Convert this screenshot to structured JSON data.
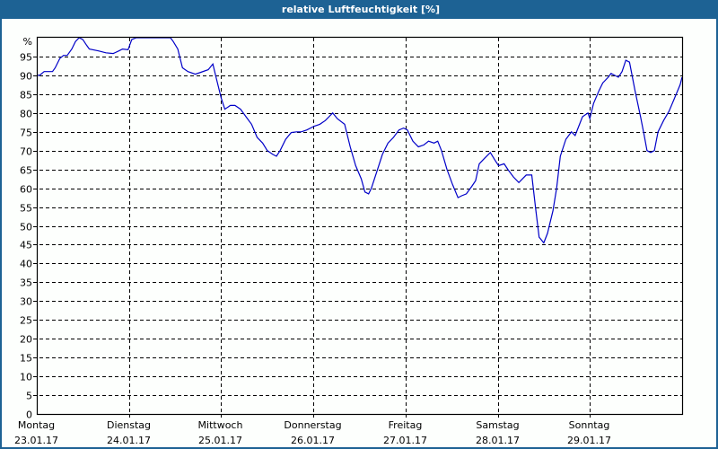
{
  "title": "relative Luftfeuchtigkeit [%]",
  "colors": {
    "frame": "#1d6294",
    "line": "#0000c8",
    "grid": "#000000",
    "background": "#fdfffd"
  },
  "chart_data": {
    "type": "line",
    "title": "relative Luftfeuchtigkeit [%]",
    "xlabel": "",
    "ylabel": "%",
    "ylim": [
      0,
      100
    ],
    "yticks": [
      0,
      5,
      10,
      15,
      20,
      25,
      30,
      35,
      40,
      45,
      50,
      55,
      60,
      65,
      70,
      75,
      80,
      85,
      90,
      95
    ],
    "y_unit_label": "%",
    "grid": true,
    "x_ticks": [
      {
        "day": "Montag",
        "date": "23.01.17"
      },
      {
        "day": "Dienstag",
        "date": "24.01.17"
      },
      {
        "day": "Mittwoch",
        "date": "25.01.17"
      },
      {
        "day": "Donnerstag",
        "date": "26.01.17"
      },
      {
        "day": "Freitag",
        "date": "27.01.17"
      },
      {
        "day": "Samstag",
        "date": "28.01.17"
      },
      {
        "day": "Sonntag",
        "date": "29.01.17"
      }
    ],
    "x_unit": "days since Montag 23.01.17 00:00",
    "x_range": [
      0,
      7
    ],
    "series": [
      {
        "name": "relative Luftfeuchtigkeit",
        "points": [
          [
            0.0,
            90
          ],
          [
            0.03,
            90
          ],
          [
            0.08,
            91
          ],
          [
            0.17,
            91
          ],
          [
            0.2,
            92
          ],
          [
            0.25,
            94.5
          ],
          [
            0.29,
            95.3
          ],
          [
            0.33,
            95.3
          ],
          [
            0.38,
            97
          ],
          [
            0.42,
            99
          ],
          [
            0.46,
            100
          ],
          [
            0.5,
            99.5
          ],
          [
            0.54,
            98
          ],
          [
            0.57,
            97
          ],
          [
            0.67,
            96.5
          ],
          [
            0.75,
            96
          ],
          [
            0.83,
            95.8
          ],
          [
            0.89,
            96.5
          ],
          [
            0.93,
            97
          ],
          [
            0.99,
            96.8
          ],
          [
            1.03,
            99.5
          ],
          [
            1.08,
            100
          ],
          [
            1.21,
            100
          ],
          [
            1.45,
            100
          ],
          [
            1.48,
            99
          ],
          [
            1.53,
            97
          ],
          [
            1.58,
            92
          ],
          [
            1.64,
            91
          ],
          [
            1.72,
            90.3
          ],
          [
            1.78,
            90.8
          ],
          [
            1.86,
            91.5
          ],
          [
            1.91,
            93
          ],
          [
            1.94,
            90
          ],
          [
            2.0,
            84
          ],
          [
            2.04,
            81
          ],
          [
            2.1,
            82
          ],
          [
            2.15,
            82
          ],
          [
            2.21,
            81
          ],
          [
            2.27,
            79
          ],
          [
            2.33,
            77
          ],
          [
            2.39,
            73.5
          ],
          [
            2.45,
            72
          ],
          [
            2.5,
            70
          ],
          [
            2.56,
            69
          ],
          [
            2.6,
            68.5
          ],
          [
            2.64,
            70
          ],
          [
            2.7,
            73
          ],
          [
            2.76,
            74.8
          ],
          [
            2.82,
            75
          ],
          [
            2.87,
            75
          ],
          [
            2.93,
            75.5
          ],
          [
            3.01,
            76.5
          ],
          [
            3.07,
            77
          ],
          [
            3.13,
            78
          ],
          [
            3.17,
            79
          ],
          [
            3.21,
            80
          ],
          [
            3.26,
            78.5
          ],
          [
            3.34,
            77
          ],
          [
            3.4,
            71
          ],
          [
            3.46,
            66
          ],
          [
            3.52,
            62.5
          ],
          [
            3.56,
            59
          ],
          [
            3.6,
            58.5
          ],
          [
            3.63,
            60
          ],
          [
            3.69,
            64.5
          ],
          [
            3.75,
            69
          ],
          [
            3.81,
            72
          ],
          [
            3.87,
            73.5
          ],
          [
            3.93,
            75.5
          ],
          [
            3.98,
            76
          ],
          [
            4.02,
            75.5
          ],
          [
            4.08,
            72.5
          ],
          [
            4.14,
            71
          ],
          [
            4.2,
            71.5
          ],
          [
            4.25,
            72.5
          ],
          [
            4.31,
            72
          ],
          [
            4.35,
            72.5
          ],
          [
            4.39,
            70
          ],
          [
            4.45,
            65
          ],
          [
            4.51,
            61
          ],
          [
            4.57,
            57.5
          ],
          [
            4.61,
            58
          ],
          [
            4.66,
            58.5
          ],
          [
            4.72,
            60.5
          ],
          [
            4.76,
            62
          ],
          [
            4.8,
            66.5
          ],
          [
            4.86,
            68
          ],
          [
            4.92,
            69.5
          ],
          [
            4.97,
            67.5
          ],
          [
            5.01,
            66
          ],
          [
            5.07,
            66.5
          ],
          [
            5.11,
            65
          ],
          [
            5.17,
            63
          ],
          [
            5.23,
            61.5
          ],
          [
            5.27,
            62.5
          ],
          [
            5.31,
            63.5
          ],
          [
            5.37,
            63.5
          ],
          [
            5.41,
            55
          ],
          [
            5.45,
            47
          ],
          [
            5.5,
            45.5
          ],
          [
            5.54,
            48
          ],
          [
            5.6,
            54
          ],
          [
            5.64,
            60
          ],
          [
            5.68,
            68.5
          ],
          [
            5.74,
            73
          ],
          [
            5.8,
            75
          ],
          [
            5.84,
            74
          ],
          [
            5.88,
            76.5
          ],
          [
            5.92,
            79
          ],
          [
            5.98,
            80
          ],
          [
            6.0,
            78.5
          ],
          [
            6.04,
            82.5
          ],
          [
            6.1,
            86
          ],
          [
            6.14,
            88
          ],
          [
            6.2,
            89.5
          ],
          [
            6.23,
            90.5
          ],
          [
            6.27,
            90
          ],
          [
            6.31,
            89.5
          ],
          [
            6.35,
            91
          ],
          [
            6.39,
            94
          ],
          [
            6.43,
            93.5
          ],
          [
            6.49,
            86
          ],
          [
            6.55,
            79
          ],
          [
            6.59,
            74
          ],
          [
            6.62,
            70
          ],
          [
            6.66,
            69.5
          ],
          [
            6.7,
            70
          ],
          [
            6.74,
            75
          ],
          [
            6.8,
            78
          ],
          [
            6.86,
            80.5
          ],
          [
            6.92,
            84
          ],
          [
            6.98,
            87.5
          ],
          [
            7.0,
            89.5
          ]
        ]
      }
    ]
  }
}
